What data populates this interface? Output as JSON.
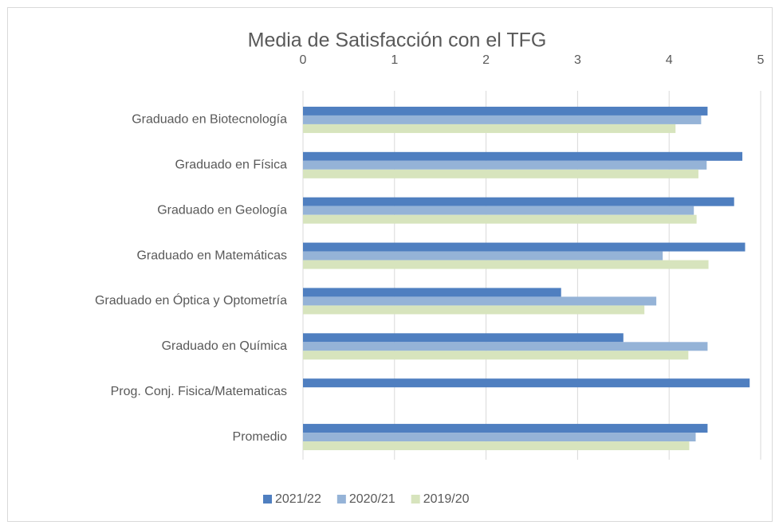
{
  "chart_data": {
    "type": "bar",
    "orientation": "horizontal",
    "title": "Media de Satisfacción con el TFG",
    "categories": [
      "Graduado en Biotecnología",
      "Graduado en Física",
      "Graduado en Geología",
      "Graduado en Matemáticas",
      "Graduado en Óptica y Optometría",
      "Graduado en Química",
      "Prog. Conj. Fisica/Matematicas",
      "Promedio"
    ],
    "series": [
      {
        "name": "2021/22",
        "color": "#4f7fc0",
        "values": [
          4.42,
          4.8,
          4.71,
          4.83,
          2.82,
          3.5,
          4.88,
          4.42
        ]
      },
      {
        "name": "2020/21",
        "color": "#95b3d7",
        "values": [
          4.35,
          4.41,
          4.27,
          3.93,
          3.86,
          4.42,
          null,
          4.29
        ]
      },
      {
        "name": "2019/20",
        "color": "#d7e4bd",
        "values": [
          4.07,
          4.32,
          4.3,
          4.43,
          3.73,
          4.21,
          null,
          4.22
        ]
      }
    ],
    "xlim": [
      0,
      5
    ],
    "xticks": [
      0,
      1,
      2,
      3,
      4,
      5
    ],
    "grid": true,
    "legend": "bottom"
  }
}
